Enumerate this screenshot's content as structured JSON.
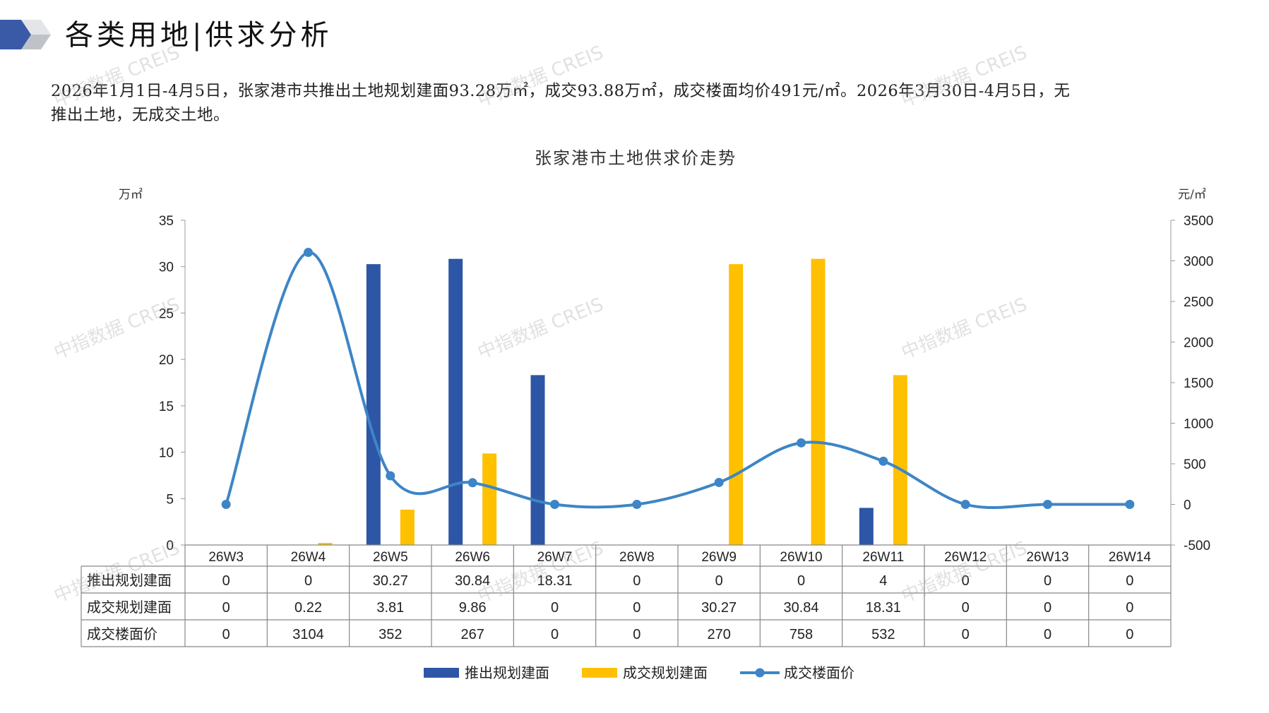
{
  "page": {
    "title": "各类用地|供求分析",
    "summary_line1": "2026年1月1日-4月5日，张家港市共推出土地规划建面93.28万㎡，成交93.88万㎡，成交楼面均价491元/㎡。2026年3月30日-4月5日，无",
    "summary_line2": "推出土地，无成交土地。",
    "watermark": "中指数据 CREIS"
  },
  "colors": {
    "supply_bar": "#2E56A6",
    "deal_bar": "#FFC000",
    "price_line": "#3D85C6",
    "decor_dark": "#3A5AA8",
    "decor_gray": "#BFC3C9"
  },
  "chart_data": {
    "type": "bar",
    "title": "张家港市土地供求价走势",
    "y_left_unit": "万㎡",
    "y_right_unit": "元/㎡",
    "y_left_range": [
      0,
      35
    ],
    "y_left_ticks": [
      0,
      5,
      10,
      15,
      20,
      25,
      30,
      35
    ],
    "y_right_range": [
      -500,
      3500
    ],
    "y_right_ticks": [
      -500,
      0,
      500,
      1000,
      1500,
      2000,
      2500,
      3000,
      3500
    ],
    "categories": [
      "26W3",
      "26W4",
      "26W5",
      "26W6",
      "26W7",
      "26W8",
      "26W9",
      "26W10",
      "26W11",
      "26W12",
      "26W13",
      "26W14"
    ],
    "series": [
      {
        "name": "推出规划建面",
        "type": "bar",
        "axis": "left",
        "color": "#2E56A6",
        "values": [
          0,
          0,
          30.27,
          30.84,
          18.31,
          0,
          0,
          0,
          4,
          0,
          0,
          0
        ],
        "labels": [
          "0",
          "0",
          "30.27",
          "30.84",
          "18.31",
          "0",
          "0",
          "0",
          "4",
          "0",
          "0",
          "0"
        ]
      },
      {
        "name": "成交规划建面",
        "type": "bar",
        "axis": "left",
        "color": "#FFC000",
        "values": [
          0,
          0.22,
          3.81,
          9.86,
          0,
          0,
          30.27,
          30.84,
          18.31,
          0,
          0,
          0
        ],
        "labels": [
          "0",
          "0.22",
          "3.81",
          "9.86",
          "0",
          "0",
          "30.27",
          "30.84",
          "18.31",
          "0",
          "0",
          "0"
        ]
      },
      {
        "name": "成交楼面价",
        "type": "line",
        "axis": "right",
        "color": "#3D85C6",
        "values": [
          0,
          3104,
          352,
          267,
          0,
          0,
          270,
          758,
          532,
          0,
          0,
          0
        ],
        "labels": [
          "0",
          "3104",
          "352",
          "267",
          "0",
          "0",
          "270",
          "758",
          "532",
          "0",
          "0",
          "0"
        ]
      }
    ],
    "legend_position": "bottom",
    "grid": false,
    "data_table": true
  }
}
